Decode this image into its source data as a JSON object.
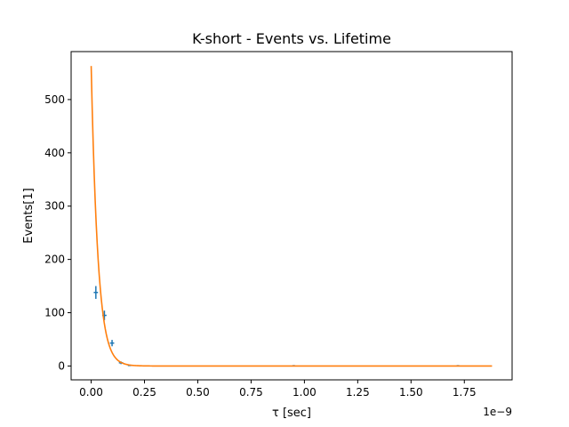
{
  "chart_data": {
    "type": "scatter",
    "title": "K-short - Events vs. Lifetime",
    "xlabel": "τ [sec]",
    "ylabel": "Events[1]",
    "x_offset_label": "1e−9",
    "x_scale": 1e-09,
    "xlim": [
      -0.094,
      1.974
    ],
    "ylim": [
      -26,
      590
    ],
    "x_ticks": [
      0.0,
      0.25,
      0.5,
      0.75,
      1.0,
      1.25,
      1.5,
      1.75
    ],
    "x_tick_labels": [
      "0.00",
      "0.25",
      "0.50",
      "0.75",
      "1.00",
      "1.25",
      "1.50",
      "1.75"
    ],
    "y_ticks": [
      0,
      100,
      200,
      300,
      400,
      500
    ],
    "y_tick_labels": [
      "0",
      "100",
      "200",
      "300",
      "400",
      "500"
    ],
    "grid": false,
    "series": [
      {
        "kind": "errorbar",
        "color": "#1f77b4",
        "points": [
          {
            "x": 0.022,
            "y": 138,
            "xerr": 0.01,
            "yerr": 12
          },
          {
            "x": 0.062,
            "y": 95,
            "xerr": 0.01,
            "yerr": 9
          },
          {
            "x": 0.098,
            "y": 43,
            "xerr": 0.01,
            "yerr": 6
          },
          {
            "x": 0.14,
            "y": 6,
            "xerr": 0.01,
            "yerr": 2.5
          },
          {
            "x": 0.18,
            "y": 1,
            "xerr": 0.008,
            "yerr": 1
          },
          {
            "x": 0.95,
            "y": 0.5,
            "xerr": 0.006,
            "yerr": 0.8
          },
          {
            "x": 1.72,
            "y": 0.5,
            "xerr": 0.006,
            "yerr": 0.8
          }
        ]
      },
      {
        "kind": "line",
        "color": "#ff7f0e",
        "fit": {
          "amplitude": 563,
          "decay": 0.0316,
          "x_start": 0.0,
          "x_end": 1.88
        }
      }
    ]
  }
}
